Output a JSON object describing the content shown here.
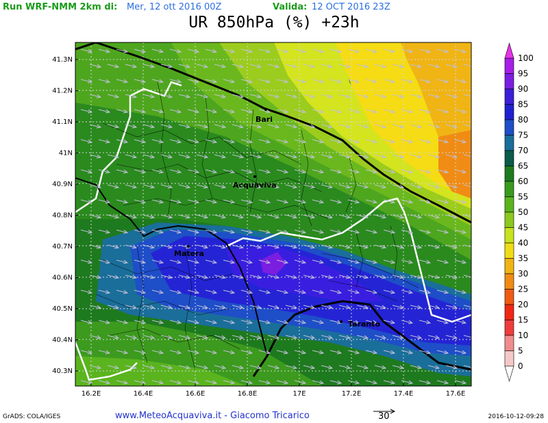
{
  "header": {
    "run_label": "Run WRF-NMM 2km di:",
    "run_date": "Mer, 12 ott 2016 00Z",
    "valid_label": "Valida:",
    "valid_date": "12 OCT 2016 23Z",
    "title": "UR 850hPa (%) +23h"
  },
  "map": {
    "lat_ticks": [
      "41.3N",
      "41.2N",
      "41.1N",
      "41N",
      "40.9N",
      "40.8N",
      "40.7N",
      "40.6N",
      "40.5N",
      "40.4N",
      "40.3N"
    ],
    "lon_ticks": [
      "16.2E",
      "16.4E",
      "16.6E",
      "16.8E",
      "17E",
      "17.2E",
      "17.4E",
      "17.6E"
    ],
    "cities": [
      "Bari",
      "Acquaviva",
      "Matera",
      "Taranto"
    ],
    "wind_direction": "WNW to ESE",
    "wind_reference": "30"
  },
  "colorbar": {
    "labels": [
      "100",
      "95",
      "90",
      "85",
      "80",
      "75",
      "70",
      "65",
      "60",
      "55",
      "50",
      "45",
      "40",
      "35",
      "30",
      "25",
      "20",
      "15",
      "10",
      "5",
      "0"
    ],
    "colors": [
      "#e832e8",
      "#a61ee8",
      "#7a1ee0",
      "#3c1ed8",
      "#2020d0",
      "#1e4ec8",
      "#1a6e9a",
      "#0b5b4a",
      "#1e7a1e",
      "#3a9a1e",
      "#5ab41e",
      "#8cc81e",
      "#c8e21e",
      "#f0dc14",
      "#f0b414",
      "#f08c14",
      "#f05a14",
      "#f02814",
      "#f03c3c",
      "#f08c8c",
      "#f5c8c8"
    ]
  },
  "footer": {
    "left": "GrADS: COLA/IGES",
    "center": "www.MeteoAcquaviva.it  -  Giacomo Tricarico",
    "right": "2016-10-12-09:28"
  }
}
